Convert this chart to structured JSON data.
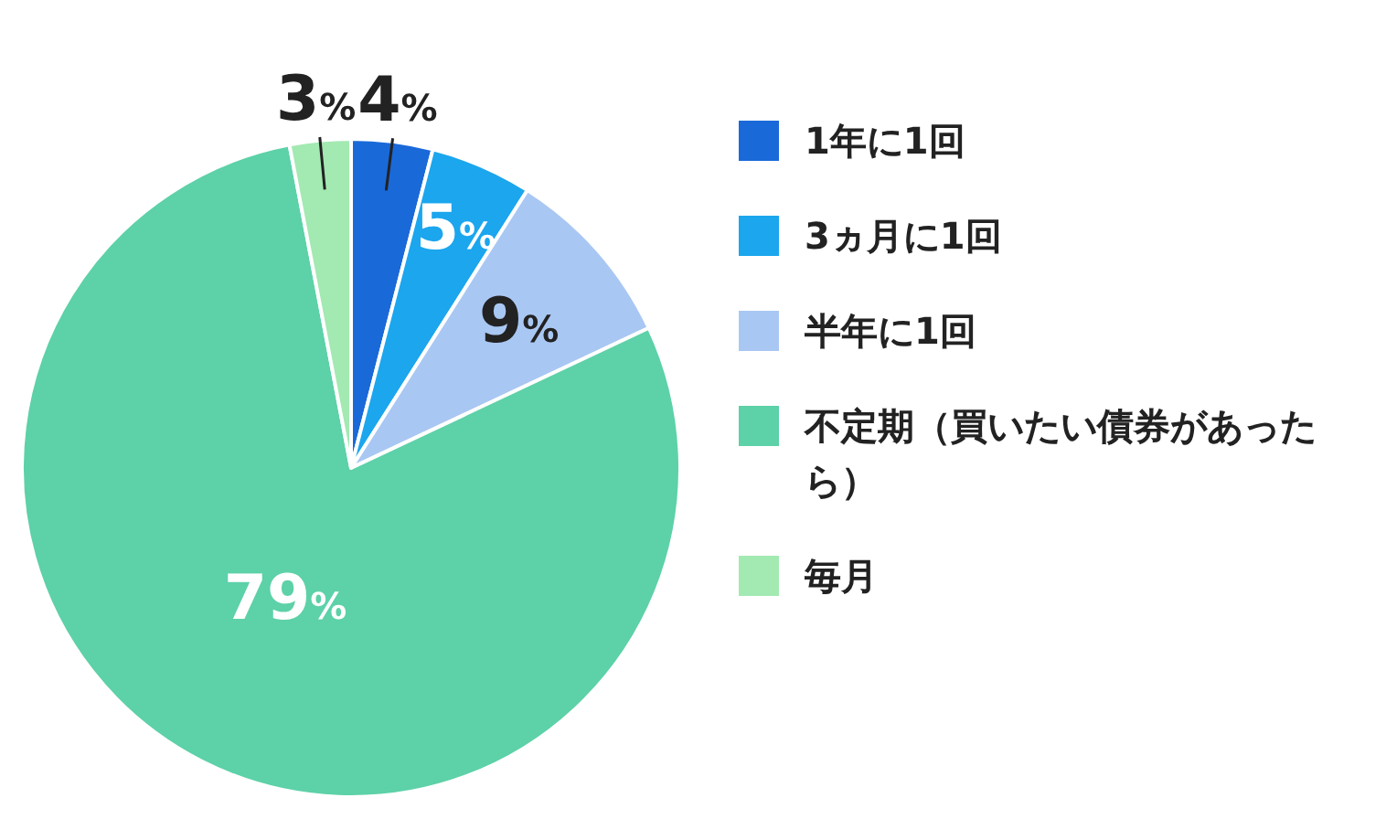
{
  "chart_data": {
    "type": "pie",
    "categories": [
      "1年に1回",
      "3ヵ月に1回",
      "半年に1回",
      "不定期（買いたい債券があったら）",
      "毎月"
    ],
    "values": [
      4,
      5,
      9,
      79,
      3
    ],
    "colors": [
      "#1a69d9",
      "#1ba6ee",
      "#a9c7f3",
      "#5dd1a8",
      "#a3e9b2"
    ],
    "value_labels": [
      "4%",
      "5%",
      "9%",
      "79%",
      "3%"
    ],
    "legend": "right"
  }
}
